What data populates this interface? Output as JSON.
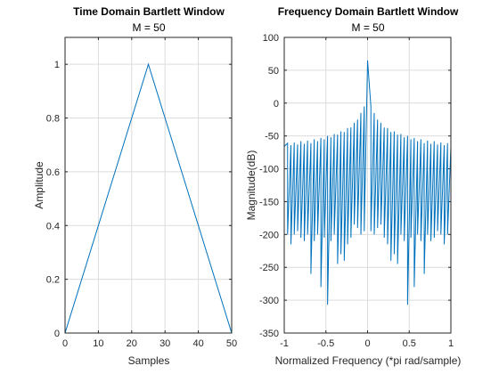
{
  "chart_data": [
    {
      "type": "line",
      "title": "Time Domain Bartlett Window",
      "subtitle": "M = 50",
      "xlabel": "Samples",
      "ylabel": "Amplitude",
      "xlim": [
        0,
        50
      ],
      "ylim": [
        0,
        1.1
      ],
      "xticks": [
        0,
        10,
        20,
        30,
        40,
        50
      ],
      "yticks": [
        0,
        0.2,
        0.4,
        0.6,
        0.8,
        1
      ],
      "ytick_labels": [
        "0",
        "0.2",
        "0.4",
        "0.6",
        "0.8",
        "1"
      ],
      "grid": true,
      "series": [
        {
          "x": [
            0,
            25,
            50
          ],
          "y": [
            0,
            1,
            0
          ]
        }
      ]
    },
    {
      "type": "line",
      "title": "Frequency Domain Bartlett Window",
      "subtitle": "M = 50",
      "xlabel": "Normalized Frequency (*pi rad/sample)",
      "ylabel": "Magnitude(dB)",
      "xlim": [
        -1,
        1
      ],
      "ylim": [
        -350,
        100
      ],
      "xticks": [
        -1,
        -0.5,
        0,
        0.5,
        1
      ],
      "xtick_labels": [
        "-1",
        "-0.5",
        "0",
        "0.5",
        "1"
      ],
      "yticks": [
        -350,
        -300,
        -250,
        -200,
        -150,
        -100,
        -50,
        0,
        50,
        100
      ],
      "grid": true,
      "series": [
        {
          "x": [
            -1,
            -0.96,
            -0.92,
            -0.88,
            -0.84,
            -0.8,
            -0.76,
            -0.72,
            -0.68,
            -0.64,
            -0.6,
            -0.56,
            -0.52,
            -0.48,
            -0.44,
            -0.4,
            -0.36,
            -0.32,
            -0.28,
            -0.24,
            -0.2,
            -0.16,
            -0.12,
            -0.08,
            -0.04,
            0,
            0.04,
            0.08,
            0.12,
            0.16,
            0.2,
            0.24,
            0.28,
            0.32,
            0.36,
            0.4,
            0.44,
            0.48,
            0.52,
            0.56,
            0.6,
            0.64,
            0.68,
            0.72,
            0.76,
            0.8,
            0.84,
            0.88,
            0.92,
            0.96,
            1
          ],
          "y": [
            -66,
            -61,
            -64,
            -60,
            -63,
            -58,
            -62,
            -57,
            -61,
            -55,
            -58,
            -53,
            -55,
            -50,
            -52,
            -47,
            -48,
            -43,
            -44,
            -38,
            -37,
            -30,
            -25,
            -15,
            -5,
            65,
            -5,
            -15,
            -25,
            -30,
            -37,
            -38,
            -44,
            -43,
            -48,
            -47,
            -52,
            -50,
            -55,
            -53,
            -58,
            -55,
            -61,
            -57,
            -62,
            -58,
            -63,
            -60,
            -64,
            -61,
            -66
          ],
          "dips": [
            {
              "x": -0.96,
              "y": -200
            },
            {
              "x": -0.92,
              "y": -215
            },
            {
              "x": -0.88,
              "y": -200
            },
            {
              "x": -0.84,
              "y": -195
            },
            {
              "x": -0.8,
              "y": -205
            },
            {
              "x": -0.76,
              "y": -210
            },
            {
              "x": -0.72,
              "y": -200
            },
            {
              "x": -0.68,
              "y": -260
            },
            {
              "x": -0.64,
              "y": -210
            },
            {
              "x": -0.6,
              "y": -200
            },
            {
              "x": -0.56,
              "y": -280
            },
            {
              "x": -0.52,
              "y": -205
            },
            {
              "x": -0.48,
              "y": -307
            },
            {
              "x": -0.44,
              "y": -210
            },
            {
              "x": -0.4,
              "y": -200
            },
            {
              "x": -0.36,
              "y": -245
            },
            {
              "x": -0.32,
              "y": -230
            },
            {
              "x": -0.28,
              "y": -240
            },
            {
              "x": -0.24,
              "y": -215
            },
            {
              "x": -0.2,
              "y": -205
            },
            {
              "x": -0.16,
              "y": -185
            },
            {
              "x": -0.12,
              "y": -190
            },
            {
              "x": -0.08,
              "y": -200
            },
            {
              "x": -0.04,
              "y": -195
            },
            {
              "x": 0.04,
              "y": -195
            },
            {
              "x": 0.08,
              "y": -200
            },
            {
              "x": 0.12,
              "y": -190
            },
            {
              "x": 0.16,
              "y": -185
            },
            {
              "x": 0.2,
              "y": -205
            },
            {
              "x": 0.24,
              "y": -215
            },
            {
              "x": 0.28,
              "y": -240
            },
            {
              "x": 0.32,
              "y": -230
            },
            {
              "x": 0.36,
              "y": -245
            },
            {
              "x": 0.4,
              "y": -200
            },
            {
              "x": 0.44,
              "y": -210
            },
            {
              "x": 0.48,
              "y": -307
            },
            {
              "x": 0.52,
              "y": -205
            },
            {
              "x": 0.56,
              "y": -280
            },
            {
              "x": 0.6,
              "y": -200
            },
            {
              "x": 0.64,
              "y": -210
            },
            {
              "x": 0.68,
              "y": -260
            },
            {
              "x": 0.72,
              "y": -200
            },
            {
              "x": 0.76,
              "y": -210
            },
            {
              "x": 0.8,
              "y": -205
            },
            {
              "x": 0.84,
              "y": -195
            },
            {
              "x": 0.88,
              "y": -200
            },
            {
              "x": 0.92,
              "y": -215
            },
            {
              "x": 0.96,
              "y": -200
            }
          ]
        }
      ]
    }
  ],
  "colors": {
    "line": "#0072BD",
    "axes": "#262626",
    "grid": "#dcdcdc"
  }
}
